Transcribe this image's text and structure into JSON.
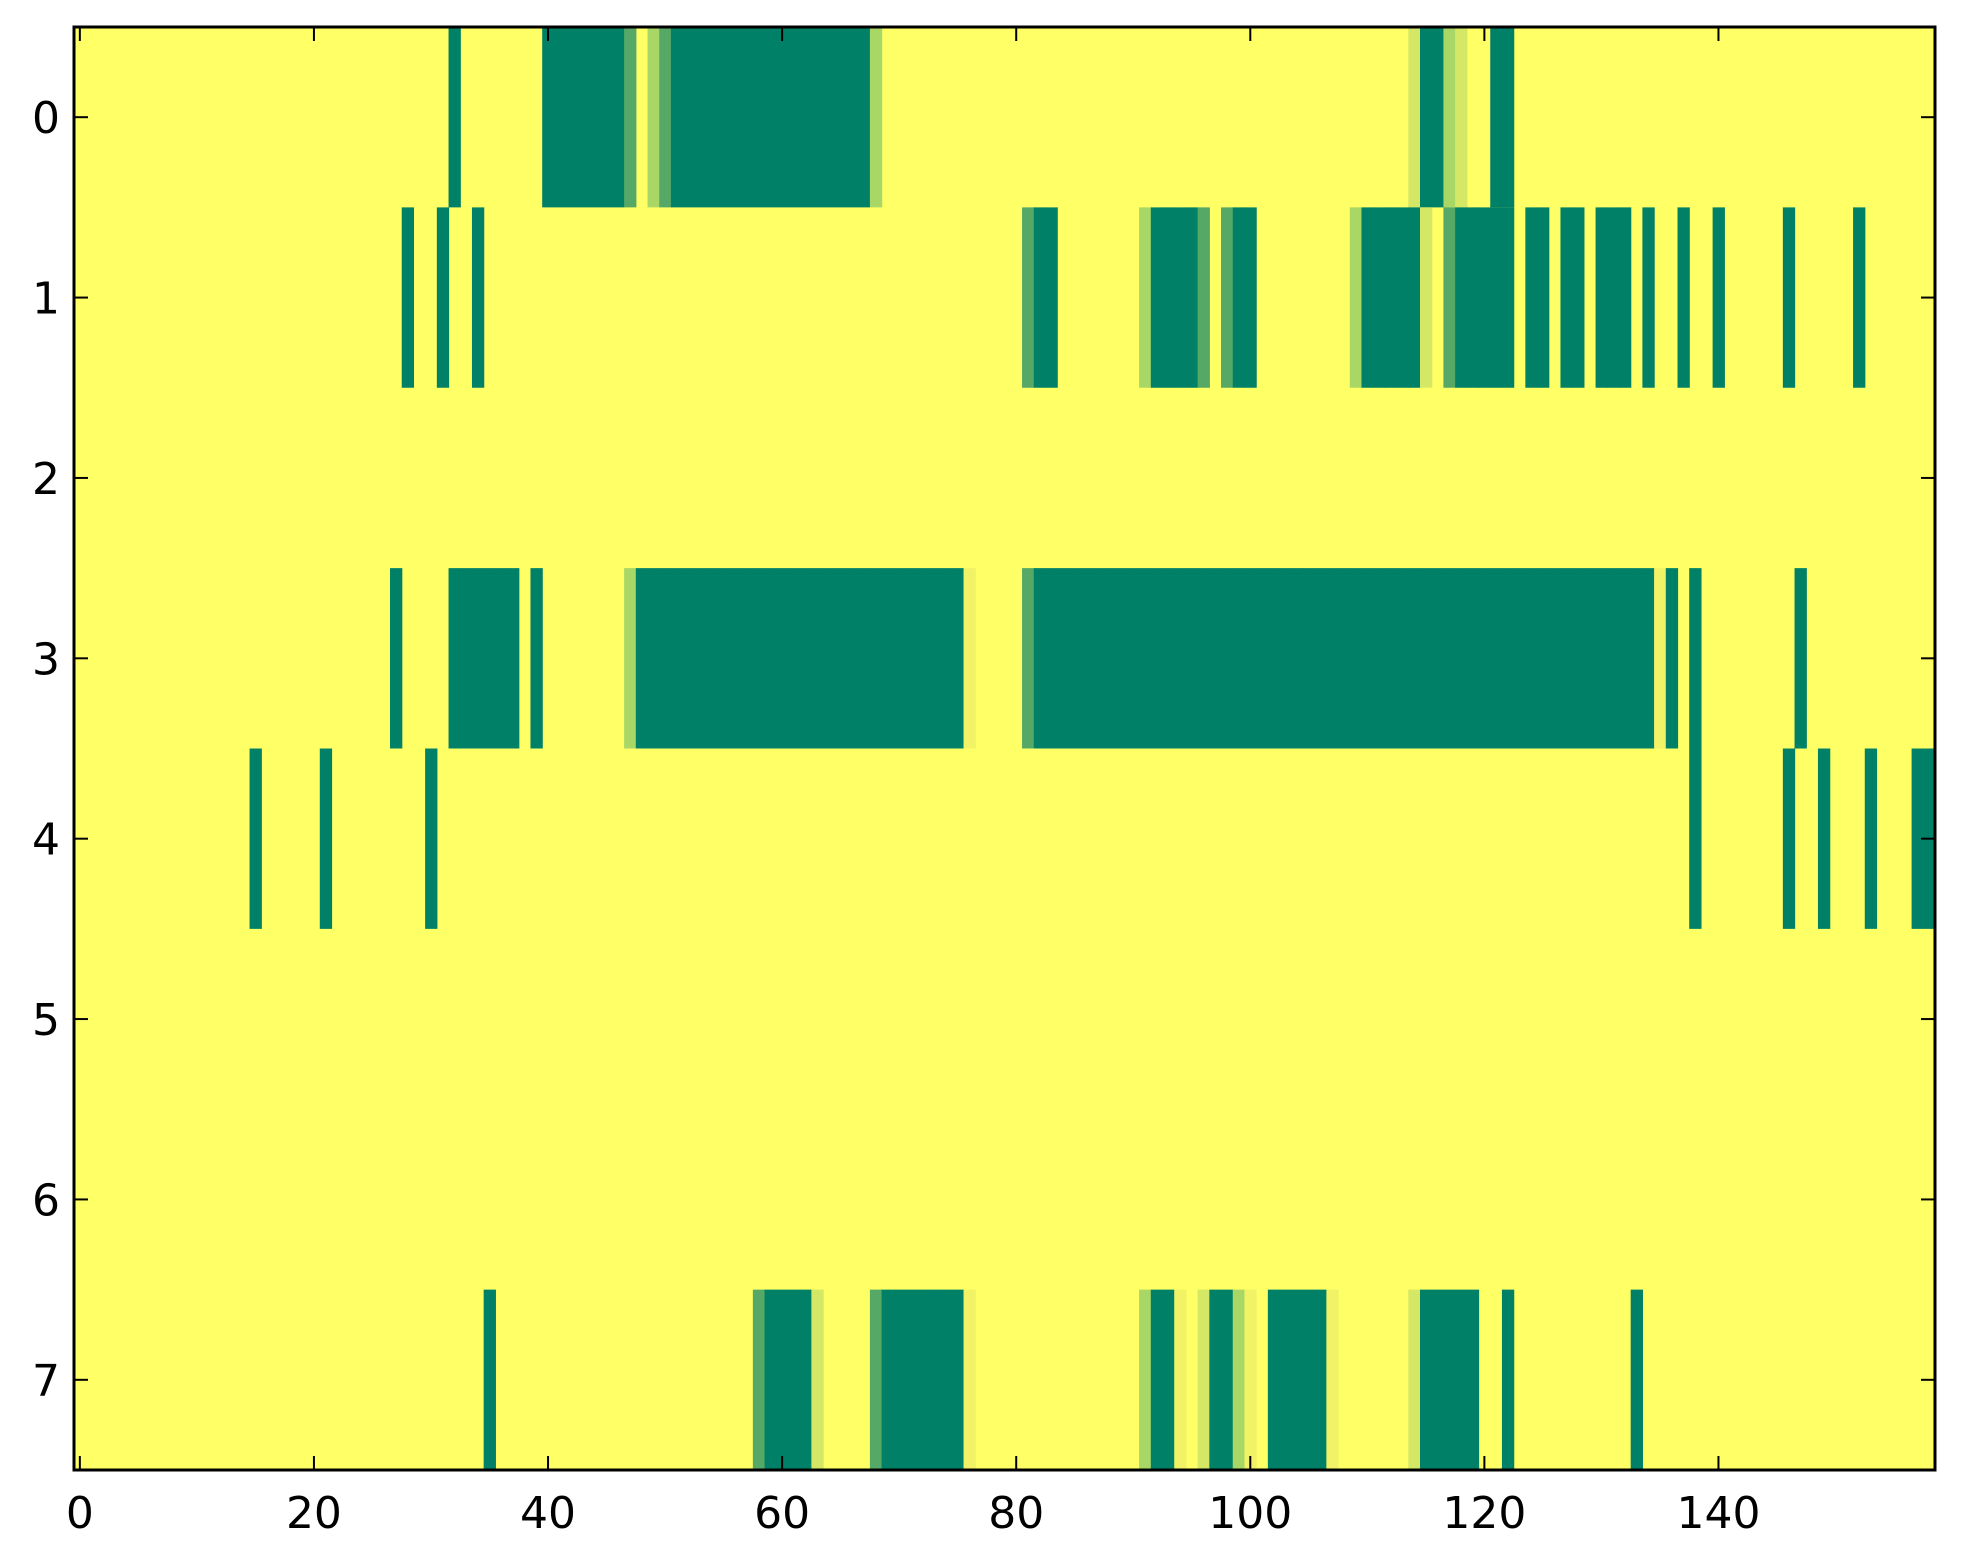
{
  "chart_data": {
    "type": "heatmap",
    "title": "",
    "xlabel": "",
    "ylabel": "",
    "colors": {
      "background": "#ffff66",
      "c1": "#f2f266",
      "c2": "#d4e866",
      "c3": "#a8d766",
      "c4": "#56a866",
      "dark": "#008066"
    },
    "xlim": [
      -0.5,
      158.5
    ],
    "ylim": [
      -0.5,
      7.5
    ],
    "xticks": [
      0,
      20,
      40,
      60,
      80,
      100,
      120,
      140
    ],
    "xtick_labels": [
      "0",
      "20",
      "40",
      "60",
      "80",
      "100",
      "120",
      "140"
    ],
    "yticks": [
      0,
      1,
      2,
      3,
      4,
      5,
      6,
      7
    ],
    "ytick_labels": [
      "0",
      "1",
      "2",
      "3",
      "4",
      "5",
      "6",
      "7"
    ],
    "rows": [
      {
        "row": 0,
        "cells": [
          [
            32,
            "dark"
          ],
          [
            40,
            "dark"
          ],
          [
            41,
            "dark"
          ],
          [
            42,
            "dark"
          ],
          [
            43,
            "dark"
          ],
          [
            44,
            "dark"
          ],
          [
            45,
            "dark"
          ],
          [
            46,
            "dark"
          ],
          [
            47,
            "c4"
          ],
          [
            49,
            "c3"
          ],
          [
            50,
            "c4"
          ],
          [
            51,
            "dark"
          ],
          [
            52,
            "dark"
          ],
          [
            53,
            "dark"
          ],
          [
            54,
            "dark"
          ],
          [
            55,
            "dark"
          ],
          [
            56,
            "dark"
          ],
          [
            57,
            "dark"
          ],
          [
            58,
            "dark"
          ],
          [
            59,
            "dark"
          ],
          [
            60,
            "dark"
          ],
          [
            61,
            "dark"
          ],
          [
            62,
            "dark"
          ],
          [
            63,
            "dark"
          ],
          [
            64,
            "dark"
          ],
          [
            65,
            "dark"
          ],
          [
            66,
            "dark"
          ],
          [
            67,
            "dark"
          ],
          [
            68,
            "c3"
          ],
          [
            114,
            "c2"
          ],
          [
            115,
            "dark"
          ],
          [
            116,
            "dark"
          ],
          [
            117,
            "c3"
          ],
          [
            118,
            "c2"
          ],
          [
            121,
            "dark"
          ],
          [
            122,
            "dark"
          ]
        ]
      },
      {
        "row": 1,
        "cells": [
          [
            28,
            "dark"
          ],
          [
            31,
            "dark"
          ],
          [
            34,
            "dark"
          ],
          [
            81,
            "c4"
          ],
          [
            82,
            "dark"
          ],
          [
            83,
            "dark"
          ],
          [
            91,
            "c3"
          ],
          [
            92,
            "dark"
          ],
          [
            93,
            "dark"
          ],
          [
            94,
            "dark"
          ],
          [
            95,
            "dark"
          ],
          [
            96,
            "c4"
          ],
          [
            98,
            "c4"
          ],
          [
            99,
            "dark"
          ],
          [
            100,
            "dark"
          ],
          [
            109,
            "c3"
          ],
          [
            110,
            "dark"
          ],
          [
            111,
            "dark"
          ],
          [
            112,
            "dark"
          ],
          [
            113,
            "dark"
          ],
          [
            114,
            "dark"
          ],
          [
            115,
            "c2"
          ],
          [
            117,
            "c4"
          ],
          [
            118,
            "dark"
          ],
          [
            119,
            "dark"
          ],
          [
            120,
            "dark"
          ],
          [
            121,
            "dark"
          ],
          [
            122,
            "dark"
          ],
          [
            124,
            "dark"
          ],
          [
            125,
            "dark"
          ],
          [
            127,
            "dark"
          ],
          [
            128,
            "dark"
          ],
          [
            130,
            "dark"
          ],
          [
            131,
            "dark"
          ],
          [
            132,
            "dark"
          ],
          [
            134,
            "dark"
          ],
          [
            137,
            "dark"
          ],
          [
            140,
            "dark"
          ],
          [
            146,
            "dark"
          ],
          [
            152,
            "dark"
          ]
        ]
      },
      {
        "row": 2,
        "cells": []
      },
      {
        "row": 3,
        "cells": [
          [
            27,
            "dark"
          ],
          [
            32,
            "dark"
          ],
          [
            33,
            "dark"
          ],
          [
            34,
            "dark"
          ],
          [
            35,
            "dark"
          ],
          [
            36,
            "dark"
          ],
          [
            37,
            "dark"
          ],
          [
            39,
            "dark"
          ],
          [
            47,
            "c3"
          ],
          [
            48,
            "dark"
          ],
          [
            49,
            "dark"
          ],
          [
            50,
            "dark"
          ],
          [
            51,
            "dark"
          ],
          [
            52,
            "dark"
          ],
          [
            53,
            "dark"
          ],
          [
            54,
            "dark"
          ],
          [
            55,
            "dark"
          ],
          [
            56,
            "dark"
          ],
          [
            57,
            "dark"
          ],
          [
            58,
            "dark"
          ],
          [
            59,
            "dark"
          ],
          [
            60,
            "dark"
          ],
          [
            61,
            "dark"
          ],
          [
            62,
            "dark"
          ],
          [
            63,
            "dark"
          ],
          [
            64,
            "dark"
          ],
          [
            65,
            "dark"
          ],
          [
            66,
            "dark"
          ],
          [
            67,
            "dark"
          ],
          [
            68,
            "dark"
          ],
          [
            69,
            "dark"
          ],
          [
            70,
            "dark"
          ],
          [
            71,
            "dark"
          ],
          [
            72,
            "dark"
          ],
          [
            73,
            "dark"
          ],
          [
            74,
            "dark"
          ],
          [
            75,
            "dark"
          ],
          [
            76,
            "c1"
          ],
          [
            81,
            "c4"
          ],
          [
            82,
            "dark"
          ],
          [
            83,
            "dark"
          ],
          [
            84,
            "dark"
          ],
          [
            85,
            "dark"
          ],
          [
            86,
            "dark"
          ],
          [
            87,
            "dark"
          ],
          [
            88,
            "dark"
          ],
          [
            89,
            "dark"
          ],
          [
            90,
            "dark"
          ],
          [
            91,
            "dark"
          ],
          [
            92,
            "dark"
          ],
          [
            93,
            "dark"
          ],
          [
            94,
            "dark"
          ],
          [
            95,
            "dark"
          ],
          [
            96,
            "dark"
          ],
          [
            97,
            "dark"
          ],
          [
            98,
            "dark"
          ],
          [
            99,
            "dark"
          ],
          [
            100,
            "dark"
          ],
          [
            101,
            "dark"
          ],
          [
            102,
            "dark"
          ],
          [
            103,
            "dark"
          ],
          [
            104,
            "dark"
          ],
          [
            105,
            "dark"
          ],
          [
            106,
            "dark"
          ],
          [
            107,
            "dark"
          ],
          [
            108,
            "dark"
          ],
          [
            109,
            "dark"
          ],
          [
            110,
            "dark"
          ],
          [
            111,
            "dark"
          ],
          [
            112,
            "dark"
          ],
          [
            113,
            "dark"
          ],
          [
            114,
            "dark"
          ],
          [
            115,
            "dark"
          ],
          [
            116,
            "dark"
          ],
          [
            117,
            "dark"
          ],
          [
            118,
            "dark"
          ],
          [
            119,
            "dark"
          ],
          [
            120,
            "dark"
          ],
          [
            121,
            "dark"
          ],
          [
            122,
            "dark"
          ],
          [
            123,
            "dark"
          ],
          [
            124,
            "dark"
          ],
          [
            125,
            "dark"
          ],
          [
            126,
            "dark"
          ],
          [
            127,
            "dark"
          ],
          [
            128,
            "dark"
          ],
          [
            129,
            "dark"
          ],
          [
            130,
            "dark"
          ],
          [
            131,
            "dark"
          ],
          [
            132,
            "dark"
          ],
          [
            133,
            "dark"
          ],
          [
            134,
            "dark"
          ],
          [
            135,
            "c1"
          ],
          [
            136,
            "dark"
          ],
          [
            138,
            "dark"
          ],
          [
            147,
            "dark"
          ]
        ]
      },
      {
        "row": 4,
        "cells": [
          [
            15,
            "dark"
          ],
          [
            21,
            "dark"
          ],
          [
            30,
            "dark"
          ],
          [
            138,
            "dark"
          ],
          [
            146,
            "dark"
          ],
          [
            149,
            "dark"
          ],
          [
            153,
            "dark"
          ],
          [
            157,
            "dark"
          ],
          [
            158,
            "dark"
          ]
        ]
      },
      {
        "row": 5,
        "cells": []
      },
      {
        "row": 6,
        "cells": []
      },
      {
        "row": 7,
        "cells": [
          [
            35,
            "dark"
          ],
          [
            58,
            "c4"
          ],
          [
            59,
            "dark"
          ],
          [
            60,
            "dark"
          ],
          [
            61,
            "dark"
          ],
          [
            62,
            "dark"
          ],
          [
            63,
            "c2"
          ],
          [
            68,
            "c4"
          ],
          [
            69,
            "dark"
          ],
          [
            70,
            "dark"
          ],
          [
            71,
            "dark"
          ],
          [
            72,
            "dark"
          ],
          [
            73,
            "dark"
          ],
          [
            74,
            "dark"
          ],
          [
            75,
            "dark"
          ],
          [
            76,
            "c1"
          ],
          [
            91,
            "c3"
          ],
          [
            92,
            "dark"
          ],
          [
            93,
            "dark"
          ],
          [
            94,
            "c1"
          ],
          [
            96,
            "c2"
          ],
          [
            97,
            "dark"
          ],
          [
            98,
            "dark"
          ],
          [
            99,
            "c3"
          ],
          [
            100,
            "c1"
          ],
          [
            102,
            "dark"
          ],
          [
            103,
            "dark"
          ],
          [
            104,
            "dark"
          ],
          [
            105,
            "dark"
          ],
          [
            106,
            "dark"
          ],
          [
            107,
            "c1"
          ],
          [
            114,
            "c2"
          ],
          [
            115,
            "dark"
          ],
          [
            116,
            "dark"
          ],
          [
            117,
            "dark"
          ],
          [
            118,
            "dark"
          ],
          [
            119,
            "dark"
          ],
          [
            122,
            "dark"
          ],
          [
            133,
            "dark"
          ]
        ]
      }
    ]
  }
}
